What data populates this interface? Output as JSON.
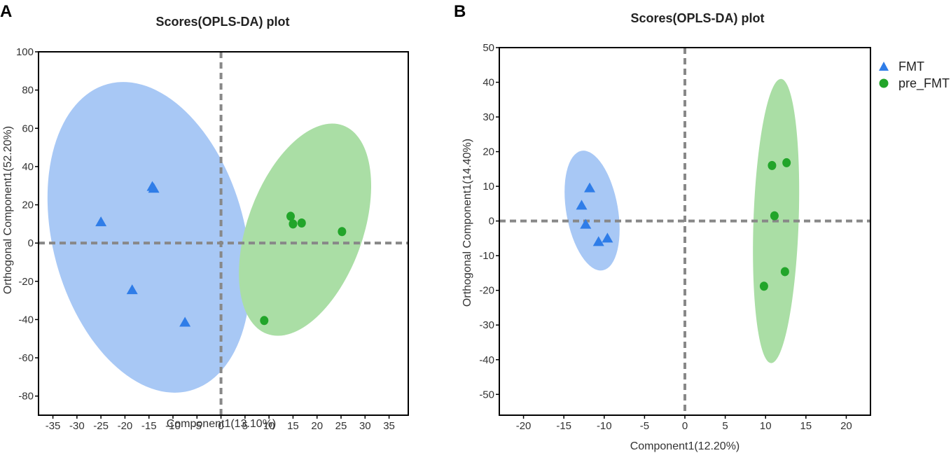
{
  "panels": [
    {
      "letter": "A"
    },
    {
      "letter": "B"
    }
  ],
  "legend": {
    "items": [
      {
        "label": "FMT",
        "marker": "triangle",
        "color": "#2f7de8"
      },
      {
        "label": "pre_FMT",
        "marker": "circle",
        "color": "#22a52a"
      }
    ]
  },
  "chart_data": [
    {
      "type": "scatter",
      "title": "Scores(OPLS-DA) plot",
      "xlabel": "Component1(13.10%)",
      "ylabel": "Orthogonal Component1(52.20%)",
      "xlim": [
        -38,
        39
      ],
      "ylim": [
        -90,
        100
      ],
      "xticks": [
        -35,
        -30,
        -25,
        -20,
        -15,
        -10,
        -5,
        0,
        5,
        10,
        15,
        20,
        25,
        30,
        35
      ],
      "yticks": [
        -80,
        -60,
        -40,
        -20,
        0,
        20,
        40,
        60,
        80,
        100
      ],
      "reference_lines": {
        "x": 0,
        "y": 0
      },
      "series": [
        {
          "name": "FMT",
          "marker": "triangle",
          "color": "#2f7de8",
          "ellipse": {
            "cx": -15,
            "cy": 3,
            "rx": 20,
            "ry": 83,
            "rotation": -15,
            "fill": "#a8c8f5"
          },
          "points": [
            [
              -25,
              11
            ],
            [
              -14.3,
              29.5
            ],
            [
              -14,
              28.5
            ],
            [
              -18.5,
              -24.5
            ],
            [
              -7.5,
              -41.5
            ]
          ]
        },
        {
          "name": "pre_FMT",
          "marker": "circle",
          "color": "#22a52a",
          "ellipse": {
            "cx": 17.5,
            "cy": 7,
            "rx": 12,
            "ry": 58,
            "rotation": 20,
            "fill": "#aadea5"
          },
          "points": [
            [
              14.5,
              14
            ],
            [
              15,
              10
            ],
            [
              16.8,
              10.5
            ],
            [
              25.2,
              6
            ],
            [
              9,
              -40.5
            ]
          ]
        }
      ]
    },
    {
      "type": "scatter",
      "title": "Scores(OPLS-DA) plot",
      "xlabel": "Component1(12.20%)",
      "ylabel": "Orthogonal Component1(14.40%)",
      "xlim": [
        -23,
        23
      ],
      "ylim": [
        -56,
        50
      ],
      "xticks": [
        -20,
        -15,
        -10,
        -5,
        0,
        5,
        10,
        15,
        20
      ],
      "yticks": [
        -50,
        -40,
        -30,
        -20,
        -10,
        0,
        10,
        20,
        30,
        40,
        50
      ],
      "reference_lines": {
        "x": 0,
        "y": 0
      },
      "series": [
        {
          "name": "FMT",
          "marker": "triangle",
          "color": "#2f7de8",
          "ellipse": {
            "cx": -11.5,
            "cy": 3,
            "rx": 3.2,
            "ry": 17.5,
            "rotation": -10,
            "fill": "#a8c8f5"
          },
          "points": [
            [
              -11.8,
              9.5
            ],
            [
              -12.8,
              4.5
            ],
            [
              -12.3,
              -1
            ],
            [
              -10.7,
              -6
            ],
            [
              -9.6,
              -5
            ]
          ]
        },
        {
          "name": "pre_FMT",
          "marker": "circle",
          "color": "#22a52a",
          "ellipse": {
            "cx": 11.3,
            "cy": 0,
            "rx": 2.8,
            "ry": 41,
            "rotation": 2,
            "fill": "#aadea5"
          },
          "points": [
            [
              10.8,
              16
            ],
            [
              12.6,
              16.8
            ],
            [
              11.1,
              1.5
            ],
            [
              12.4,
              -14.6
            ],
            [
              9.8,
              -18.8
            ]
          ]
        }
      ]
    }
  ]
}
